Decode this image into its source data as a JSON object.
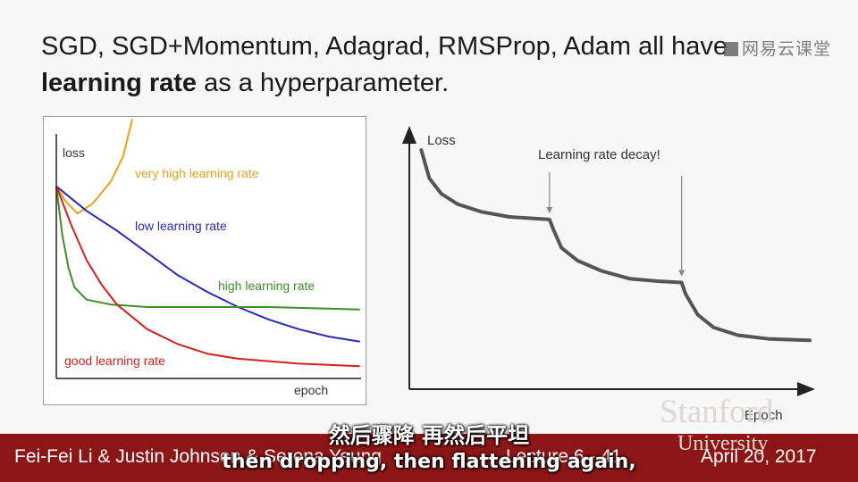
{
  "slide": {
    "title_line1": "SGD, SGD+Momentum, Adagrad, RMSProp, Adam all have",
    "title_bold": "learning rate",
    "title_rest": " as a hyperparameter.",
    "watermark": "网易云课堂"
  },
  "colors": {
    "very_high": "#e8a317",
    "low": "#2a2ab8",
    "high": "#3e8e2a",
    "good": "#d42020",
    "decay_curve": "#555555",
    "footer": "#8c1515"
  },
  "chart_data": [
    {
      "type": "line",
      "ylabel": "loss",
      "xlabel": "epoch",
      "axis_ticks": false,
      "series": [
        {
          "name": "very high learning rate",
          "color": "#e8a317",
          "points": [
            [
              0,
              0.78
            ],
            [
              0.03,
              0.72
            ],
            [
              0.07,
              0.67
            ],
            [
              0.12,
              0.71
            ],
            [
              0.18,
              0.8
            ],
            [
              0.22,
              0.9
            ],
            [
              0.25,
              1.05
            ]
          ]
        },
        {
          "name": "low learning rate",
          "color": "#2a2ab8",
          "points": [
            [
              0,
              0.78
            ],
            [
              0.1,
              0.68
            ],
            [
              0.2,
              0.6
            ],
            [
              0.3,
              0.51
            ],
            [
              0.4,
              0.42
            ],
            [
              0.5,
              0.35
            ],
            [
              0.6,
              0.29
            ],
            [
              0.7,
              0.24
            ],
            [
              0.8,
              0.2
            ],
            [
              0.9,
              0.17
            ],
            [
              1.0,
              0.15
            ]
          ]
        },
        {
          "name": "high learning rate",
          "color": "#3e8e2a",
          "points": [
            [
              0,
              0.78
            ],
            [
              0.02,
              0.58
            ],
            [
              0.04,
              0.45
            ],
            [
              0.06,
              0.37
            ],
            [
              0.1,
              0.32
            ],
            [
              0.18,
              0.3
            ],
            [
              0.3,
              0.29
            ],
            [
              0.5,
              0.29
            ],
            [
              0.7,
              0.29
            ],
            [
              1.0,
              0.28
            ]
          ]
        },
        {
          "name": "good learning rate",
          "color": "#d42020",
          "points": [
            [
              0,
              0.78
            ],
            [
              0.05,
              0.62
            ],
            [
              0.1,
              0.48
            ],
            [
              0.15,
              0.38
            ],
            [
              0.2,
              0.3
            ],
            [
              0.3,
              0.2
            ],
            [
              0.4,
              0.14
            ],
            [
              0.5,
              0.1
            ],
            [
              0.6,
              0.08
            ],
            [
              0.8,
              0.06
            ],
            [
              1.0,
              0.05
            ]
          ]
        }
      ]
    },
    {
      "type": "line",
      "ylabel": "Loss",
      "xlabel": "Epoch",
      "axis_ticks": false,
      "annotation": "Learning rate decay!",
      "decay_points_x": [
        0.35,
        0.68
      ],
      "series": [
        {
          "color": "#555555",
          "points": [
            [
              0.03,
              0.93
            ],
            [
              0.05,
              0.82
            ],
            [
              0.08,
              0.76
            ],
            [
              0.12,
              0.72
            ],
            [
              0.18,
              0.69
            ],
            [
              0.25,
              0.67
            ],
            [
              0.35,
              0.66
            ],
            [
              0.36,
              0.62
            ],
            [
              0.38,
              0.55
            ],
            [
              0.42,
              0.5
            ],
            [
              0.48,
              0.46
            ],
            [
              0.55,
              0.43
            ],
            [
              0.62,
              0.42
            ],
            [
              0.68,
              0.415
            ],
            [
              0.69,
              0.37
            ],
            [
              0.72,
              0.29
            ],
            [
              0.76,
              0.24
            ],
            [
              0.82,
              0.21
            ],
            [
              0.9,
              0.195
            ],
            [
              1.0,
              0.19
            ]
          ]
        }
      ]
    }
  ],
  "footer": {
    "authors": "Fei-Fei Li & Justin Johnson & Serena Yeung",
    "lecture": "Lecture 6 - 41",
    "date": "April 20, 2017",
    "stanford": "Stanford",
    "university": "University"
  },
  "subtitles": {
    "cn": "然后骤降  再然后平坦",
    "en": "then dropping, then flattening again,"
  }
}
